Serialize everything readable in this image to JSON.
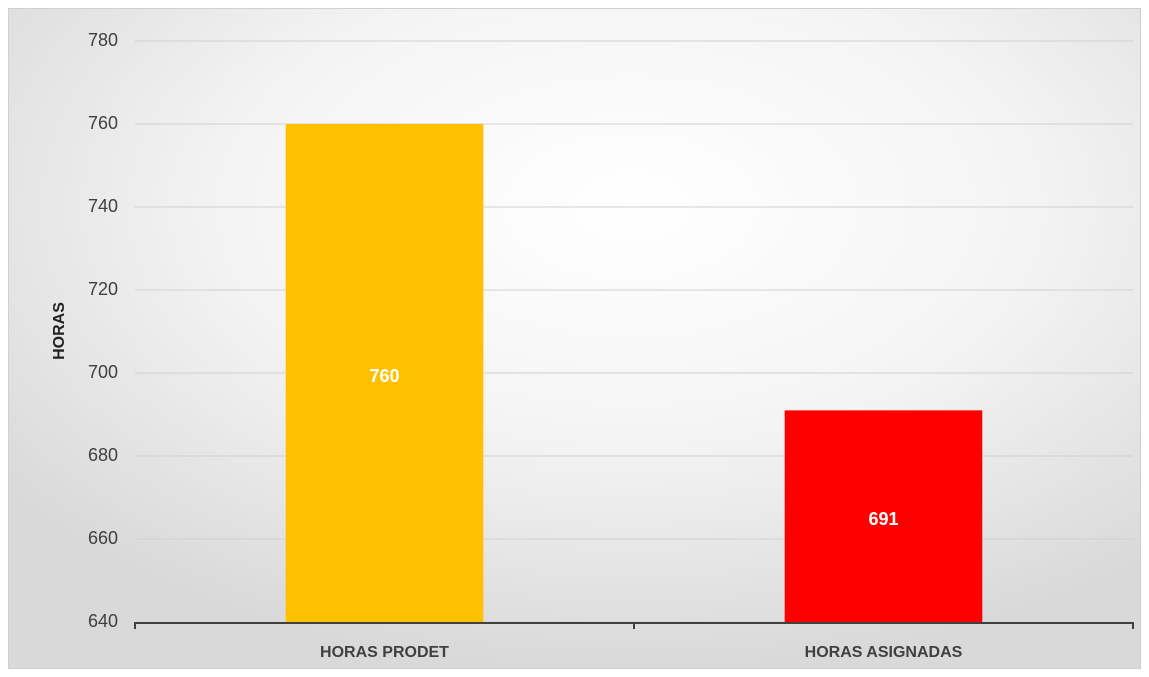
{
  "chart_data": {
    "type": "bar",
    "y_label": "HORAS",
    "categories": [
      "HORAS PRODET",
      "HORAS ASIGNADAS"
    ],
    "values": [
      760,
      691
    ],
    "colors": [
      "#FFC000",
      "#FF0000"
    ],
    "ylim": [
      640,
      780
    ],
    "yticks": [
      640,
      660,
      680,
      700,
      720,
      740,
      760,
      780
    ],
    "grid": true
  }
}
